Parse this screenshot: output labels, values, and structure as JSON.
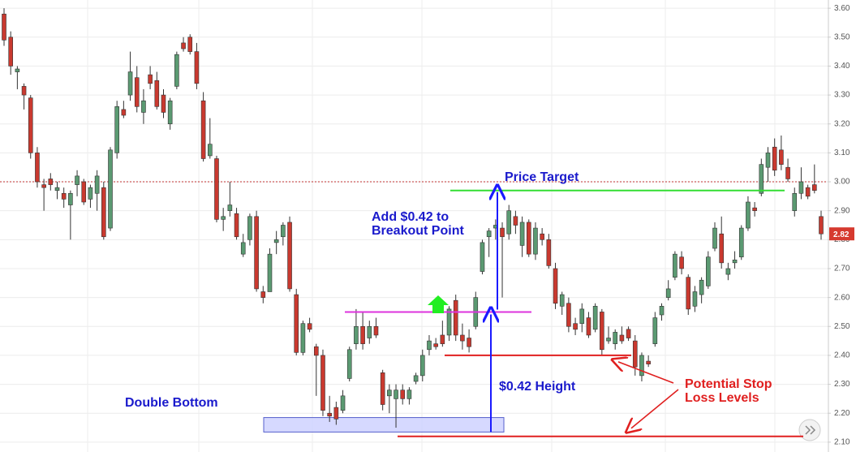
{
  "chart_data": {
    "type": "candlestick",
    "open": [
      3.58,
      3.5,
      3.38,
      3.33,
      3.29,
      3.1,
      2.99,
      3.01,
      2.97,
      2.96,
      2.92,
      2.99,
      3.0,
      2.94,
      2.96,
      2.98,
      2.84,
      3.1,
      3.25,
      3.3,
      3.36,
      3.24,
      3.37,
      3.35,
      3.3,
      3.2,
      3.33,
      3.48,
      3.5,
      3.45,
      3.28,
      3.09,
      3.08,
      2.87,
      2.9,
      2.89,
      2.75,
      2.8,
      2.88,
      2.62,
      2.62,
      2.79,
      2.81,
      2.86,
      2.61,
      2.41,
      2.51,
      2.43,
      2.4,
      2.2,
      2.22,
      2.21,
      2.32,
      2.44,
      2.5,
      2.46,
      2.5,
      2.34,
      2.26,
      2.25,
      2.28,
      2.25,
      2.31,
      2.33,
      2.42,
      2.44,
      2.47,
      2.47,
      2.59,
      2.47,
      2.46,
      2.5,
      2.69,
      2.81,
      2.84,
      2.84,
      2.82,
      2.88,
      2.78,
      2.86,
      2.75,
      2.82,
      2.8,
      2.7,
      2.57,
      2.58,
      2.51,
      2.51,
      2.53,
      2.49,
      2.55,
      2.45,
      2.44,
      2.47,
      2.49,
      2.45,
      2.33,
      2.38,
      2.44,
      2.54,
      2.6,
      2.67,
      2.74,
      2.67,
      2.57,
      2.61,
      2.64,
      2.77,
      2.82,
      2.68,
      2.72,
      2.74,
      2.84,
      2.91,
      2.96,
      3.05,
      3.12,
      3.11,
      3.05,
      2.9,
      2.96,
      2.98,
      2.99,
      2.88
    ],
    "high": [
      3.6,
      3.52,
      3.4,
      3.34,
      3.3,
      3.12,
      3.01,
      3.03,
      3.0,
      2.98,
      2.97,
      3.04,
      3.01,
      2.99,
      3.04,
      3.0,
      3.12,
      3.28,
      3.28,
      3.45,
      3.4,
      3.32,
      3.4,
      3.38,
      3.32,
      3.29,
      3.45,
      3.5,
      3.51,
      3.48,
      3.31,
      3.22,
      3.09,
      2.91,
      3.0,
      2.91,
      2.82,
      2.89,
      2.9,
      2.64,
      2.77,
      2.83,
      2.86,
      2.88,
      2.63,
      2.52,
      2.53,
      2.44,
      2.42,
      2.26,
      2.24,
      2.28,
      2.43,
      2.56,
      2.55,
      2.52,
      2.53,
      2.35,
      2.3,
      2.3,
      2.3,
      2.29,
      2.34,
      2.42,
      2.47,
      2.46,
      2.52,
      2.57,
      2.61,
      2.51,
      2.49,
      2.62,
      2.8,
      2.84,
      2.87,
      2.86,
      2.92,
      2.9,
      2.88,
      2.87,
      2.86,
      2.84,
      2.82,
      2.72,
      2.62,
      2.6,
      2.53,
      2.58,
      2.55,
      2.58,
      2.56,
      2.5,
      2.49,
      2.5,
      2.5,
      2.47,
      2.41,
      2.4,
      2.55,
      2.58,
      2.66,
      2.76,
      2.76,
      2.68,
      2.64,
      2.67,
      2.76,
      2.86,
      2.88,
      2.72,
      2.76,
      2.85,
      2.95,
      2.93,
      3.08,
      3.12,
      3.15,
      3.16,
      3.08,
      2.98,
      3.05,
      2.99,
      3.06,
      2.9
    ],
    "low": [
      3.47,
      3.37,
      3.32,
      3.25,
      3.08,
      2.98,
      2.9,
      2.97,
      2.94,
      2.91,
      2.8,
      2.95,
      2.92,
      2.91,
      2.9,
      2.8,
      2.83,
      3.08,
      3.22,
      3.28,
      3.24,
      3.2,
      3.32,
      3.25,
      3.22,
      3.18,
      3.32,
      3.45,
      3.44,
      3.32,
      3.07,
      3.08,
      2.86,
      2.83,
      2.88,
      2.8,
      2.74,
      2.78,
      2.62,
      2.58,
      2.62,
      2.75,
      2.78,
      2.62,
      2.4,
      2.4,
      2.48,
      2.26,
      2.19,
      2.17,
      2.16,
      2.2,
      2.31,
      2.42,
      2.42,
      2.44,
      2.46,
      2.21,
      2.2,
      2.15,
      2.23,
      2.23,
      2.3,
      2.31,
      2.4,
      2.42,
      2.43,
      2.45,
      2.45,
      2.42,
      2.41,
      2.49,
      2.68,
      2.74,
      2.8,
      2.6,
      2.8,
      2.82,
      2.74,
      2.74,
      2.73,
      2.78,
      2.7,
      2.56,
      2.54,
      2.48,
      2.47,
      2.48,
      2.46,
      2.48,
      2.4,
      2.44,
      2.42,
      2.44,
      2.45,
      2.33,
      2.31,
      2.36,
      2.43,
      2.52,
      2.59,
      2.66,
      2.68,
      2.54,
      2.55,
      2.58,
      2.63,
      2.76,
      2.7,
      2.66,
      2.7,
      2.73,
      2.83,
      2.88,
      2.95,
      3.0,
      3.02,
      3.04,
      3.0,
      2.88,
      2.94,
      2.94,
      2.96,
      2.8
    ],
    "close": [
      3.49,
      3.4,
      3.39,
      3.3,
      3.1,
      3.0,
      2.98,
      2.99,
      2.98,
      2.94,
      2.96,
      3.02,
      2.93,
      2.98,
      3.02,
      2.81,
      3.11,
      3.26,
      3.23,
      3.38,
      3.26,
      3.28,
      3.34,
      3.26,
      3.24,
      3.28,
      3.44,
      3.46,
      3.45,
      3.34,
      3.08,
      3.13,
      2.87,
      2.88,
      2.92,
      2.81,
      2.79,
      2.88,
      2.63,
      2.6,
      2.75,
      2.8,
      2.85,
      2.63,
      2.41,
      2.51,
      2.49,
      2.4,
      2.21,
      2.19,
      2.18,
      2.26,
      2.42,
      2.5,
      2.44,
      2.5,
      2.47,
      2.23,
      2.28,
      2.28,
      2.25,
      2.28,
      2.33,
      2.4,
      2.45,
      2.43,
      2.44,
      2.56,
      2.47,
      2.45,
      2.43,
      2.6,
      2.79,
      2.83,
      2.85,
      2.81,
      2.9,
      2.85,
      2.86,
      2.75,
      2.84,
      2.8,
      2.71,
      2.58,
      2.61,
      2.5,
      2.49,
      2.56,
      2.47,
      2.57,
      2.42,
      2.46,
      2.48,
      2.45,
      2.46,
      2.36,
      2.4,
      2.37,
      2.53,
      2.57,
      2.63,
      2.75,
      2.7,
      2.56,
      2.62,
      2.66,
      2.74,
      2.84,
      2.72,
      2.7,
      2.73,
      2.84,
      2.93,
      2.9,
      3.06,
      3.1,
      3.04,
      3.06,
      3.01,
      2.96,
      3.0,
      2.95,
      2.97,
      2.82
    ],
    "up_color": "#5b9a72",
    "down_color": "#c9392f",
    "ylim": [
      2.08,
      3.62
    ],
    "yticks": [
      {
        "value": 2.1,
        "label": "2.10"
      },
      {
        "value": 2.2,
        "label": "2.20"
      },
      {
        "value": 2.3,
        "label": "2.30"
      },
      {
        "value": 2.4,
        "label": "2.40"
      },
      {
        "value": 2.5,
        "label": "2.50"
      },
      {
        "value": 2.6,
        "label": "2.60"
      },
      {
        "value": 2.7,
        "label": "2.70"
      },
      {
        "value": 2.8,
        "label": "2.80"
      },
      {
        "value": 2.9,
        "label": "2.90"
      },
      {
        "value": 3.0,
        "label": "3.00"
      },
      {
        "value": 3.1,
        "label": "3.10"
      },
      {
        "value": 3.2,
        "label": "3.20"
      },
      {
        "value": 3.3,
        "label": "3.30"
      },
      {
        "value": 3.4,
        "label": "3.40"
      },
      {
        "value": 3.5,
        "label": "3.50"
      },
      {
        "value": 3.6,
        "label": "3.60"
      }
    ],
    "grid": true,
    "reference_line": 3.0,
    "last_price": 2.82,
    "levels": [
      {
        "value": 2.97,
        "color": "#33dd33"
      },
      {
        "value": 2.55,
        "color": "#dd33dd"
      },
      {
        "value": 2.4,
        "color": "#e02020"
      },
      {
        "value": 2.12,
        "color": "#e02020"
      }
    ],
    "zone": [
      2.135,
      2.185
    ],
    "annotations": {
      "price_target": "Price Target",
      "add": [
        "Add $0.42 to",
        "Breakout Point"
      ],
      "height": "$0.42 Height",
      "double_bottom": "Double Bottom",
      "stop_loss": [
        "Potential Stop",
        "Loss Levels"
      ]
    }
  }
}
